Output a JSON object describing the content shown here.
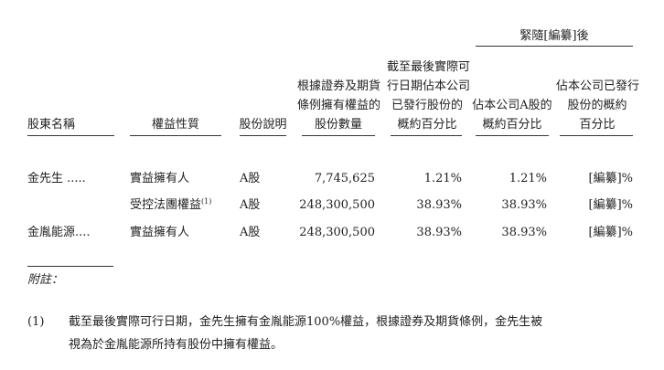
{
  "group_header": "緊隨[編纂]後",
  "columns": [
    {
      "lines": [
        "股東名稱"
      ]
    },
    {
      "lines": [
        "權益性質"
      ]
    },
    {
      "lines": [
        "股份說明"
      ]
    },
    {
      "lines": [
        "根據證券及期貨",
        "條例擁有權益的",
        "股份數量"
      ]
    },
    {
      "lines": [
        "截至最後實際可",
        "行日期佔本公司",
        "已發行股份的",
        "概約百分比"
      ]
    },
    {
      "lines": [
        "佔本公司A股的",
        "概約百分比"
      ]
    },
    {
      "lines": [
        "佔本公司已發行",
        "股份的概約",
        "百分比"
      ]
    }
  ],
  "rows": [
    {
      "name": "金先生 .....",
      "nature": "實益擁有人",
      "note": "",
      "type": "A股",
      "shares": "7,745,625",
      "pct_now": "1.21%",
      "pct_a": "1.21%",
      "pct_after": "[編纂]%"
    },
    {
      "name": "",
      "nature": "受控法團權益",
      "note": "(1)",
      "type": "A股",
      "shares": "248,300,500",
      "pct_now": "38.93%",
      "pct_a": "38.93%",
      "pct_after": "[編纂]%"
    },
    {
      "name": "金胤能源....",
      "nature": "實益擁有人",
      "note": "",
      "type": "A股",
      "shares": "248,300,500",
      "pct_now": "38.93%",
      "pct_a": "38.93%",
      "pct_after": "[編纂]%"
    }
  ],
  "notes": {
    "heading": "附註：",
    "items": [
      {
        "marker": "(1)",
        "line1": "截至最後實際可行日期，金先生擁有金胤能源100%權益，根據證券及期貨條例，金先生被",
        "line2": "視為於金胤能源所持有股份中擁有權益。"
      }
    ]
  }
}
